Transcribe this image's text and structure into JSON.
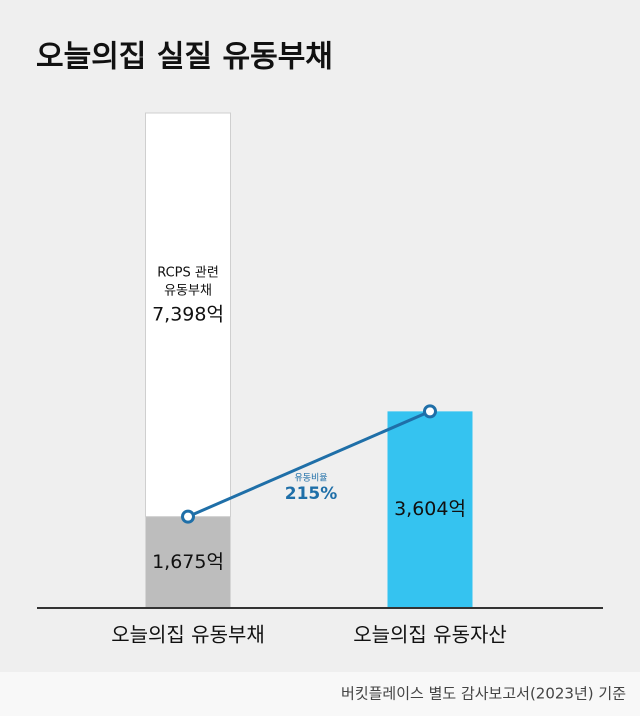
{
  "chart_data": {
    "type": "bar",
    "title": "오늘의집 실질 유동부채",
    "categories": [
      "오늘의집 유동부채",
      "오늘의집 유동자산"
    ],
    "series": [
      {
        "color": "#bdbdbd",
        "values": [
          1675,
          null
        ],
        "value_labels": [
          "1,675억",
          null
        ]
      },
      {
        "name_lines": [
          "RCPS 관련",
          "유동부채"
        ],
        "color": "#ffffff",
        "values": [
          7398,
          null
        ],
        "value_labels": [
          "7,398억",
          null
        ]
      },
      {
        "color": "#35c3f0",
        "values": [
          null,
          3604
        ],
        "value_labels": [
          null,
          "3,604억"
        ]
      }
    ],
    "ratio": {
      "label": "유동비율",
      "value": 215,
      "value_label": "215%",
      "color": "#1f6fa8"
    },
    "source": "버킷플레이스 별도 감사보고서(2023년) 기준"
  }
}
